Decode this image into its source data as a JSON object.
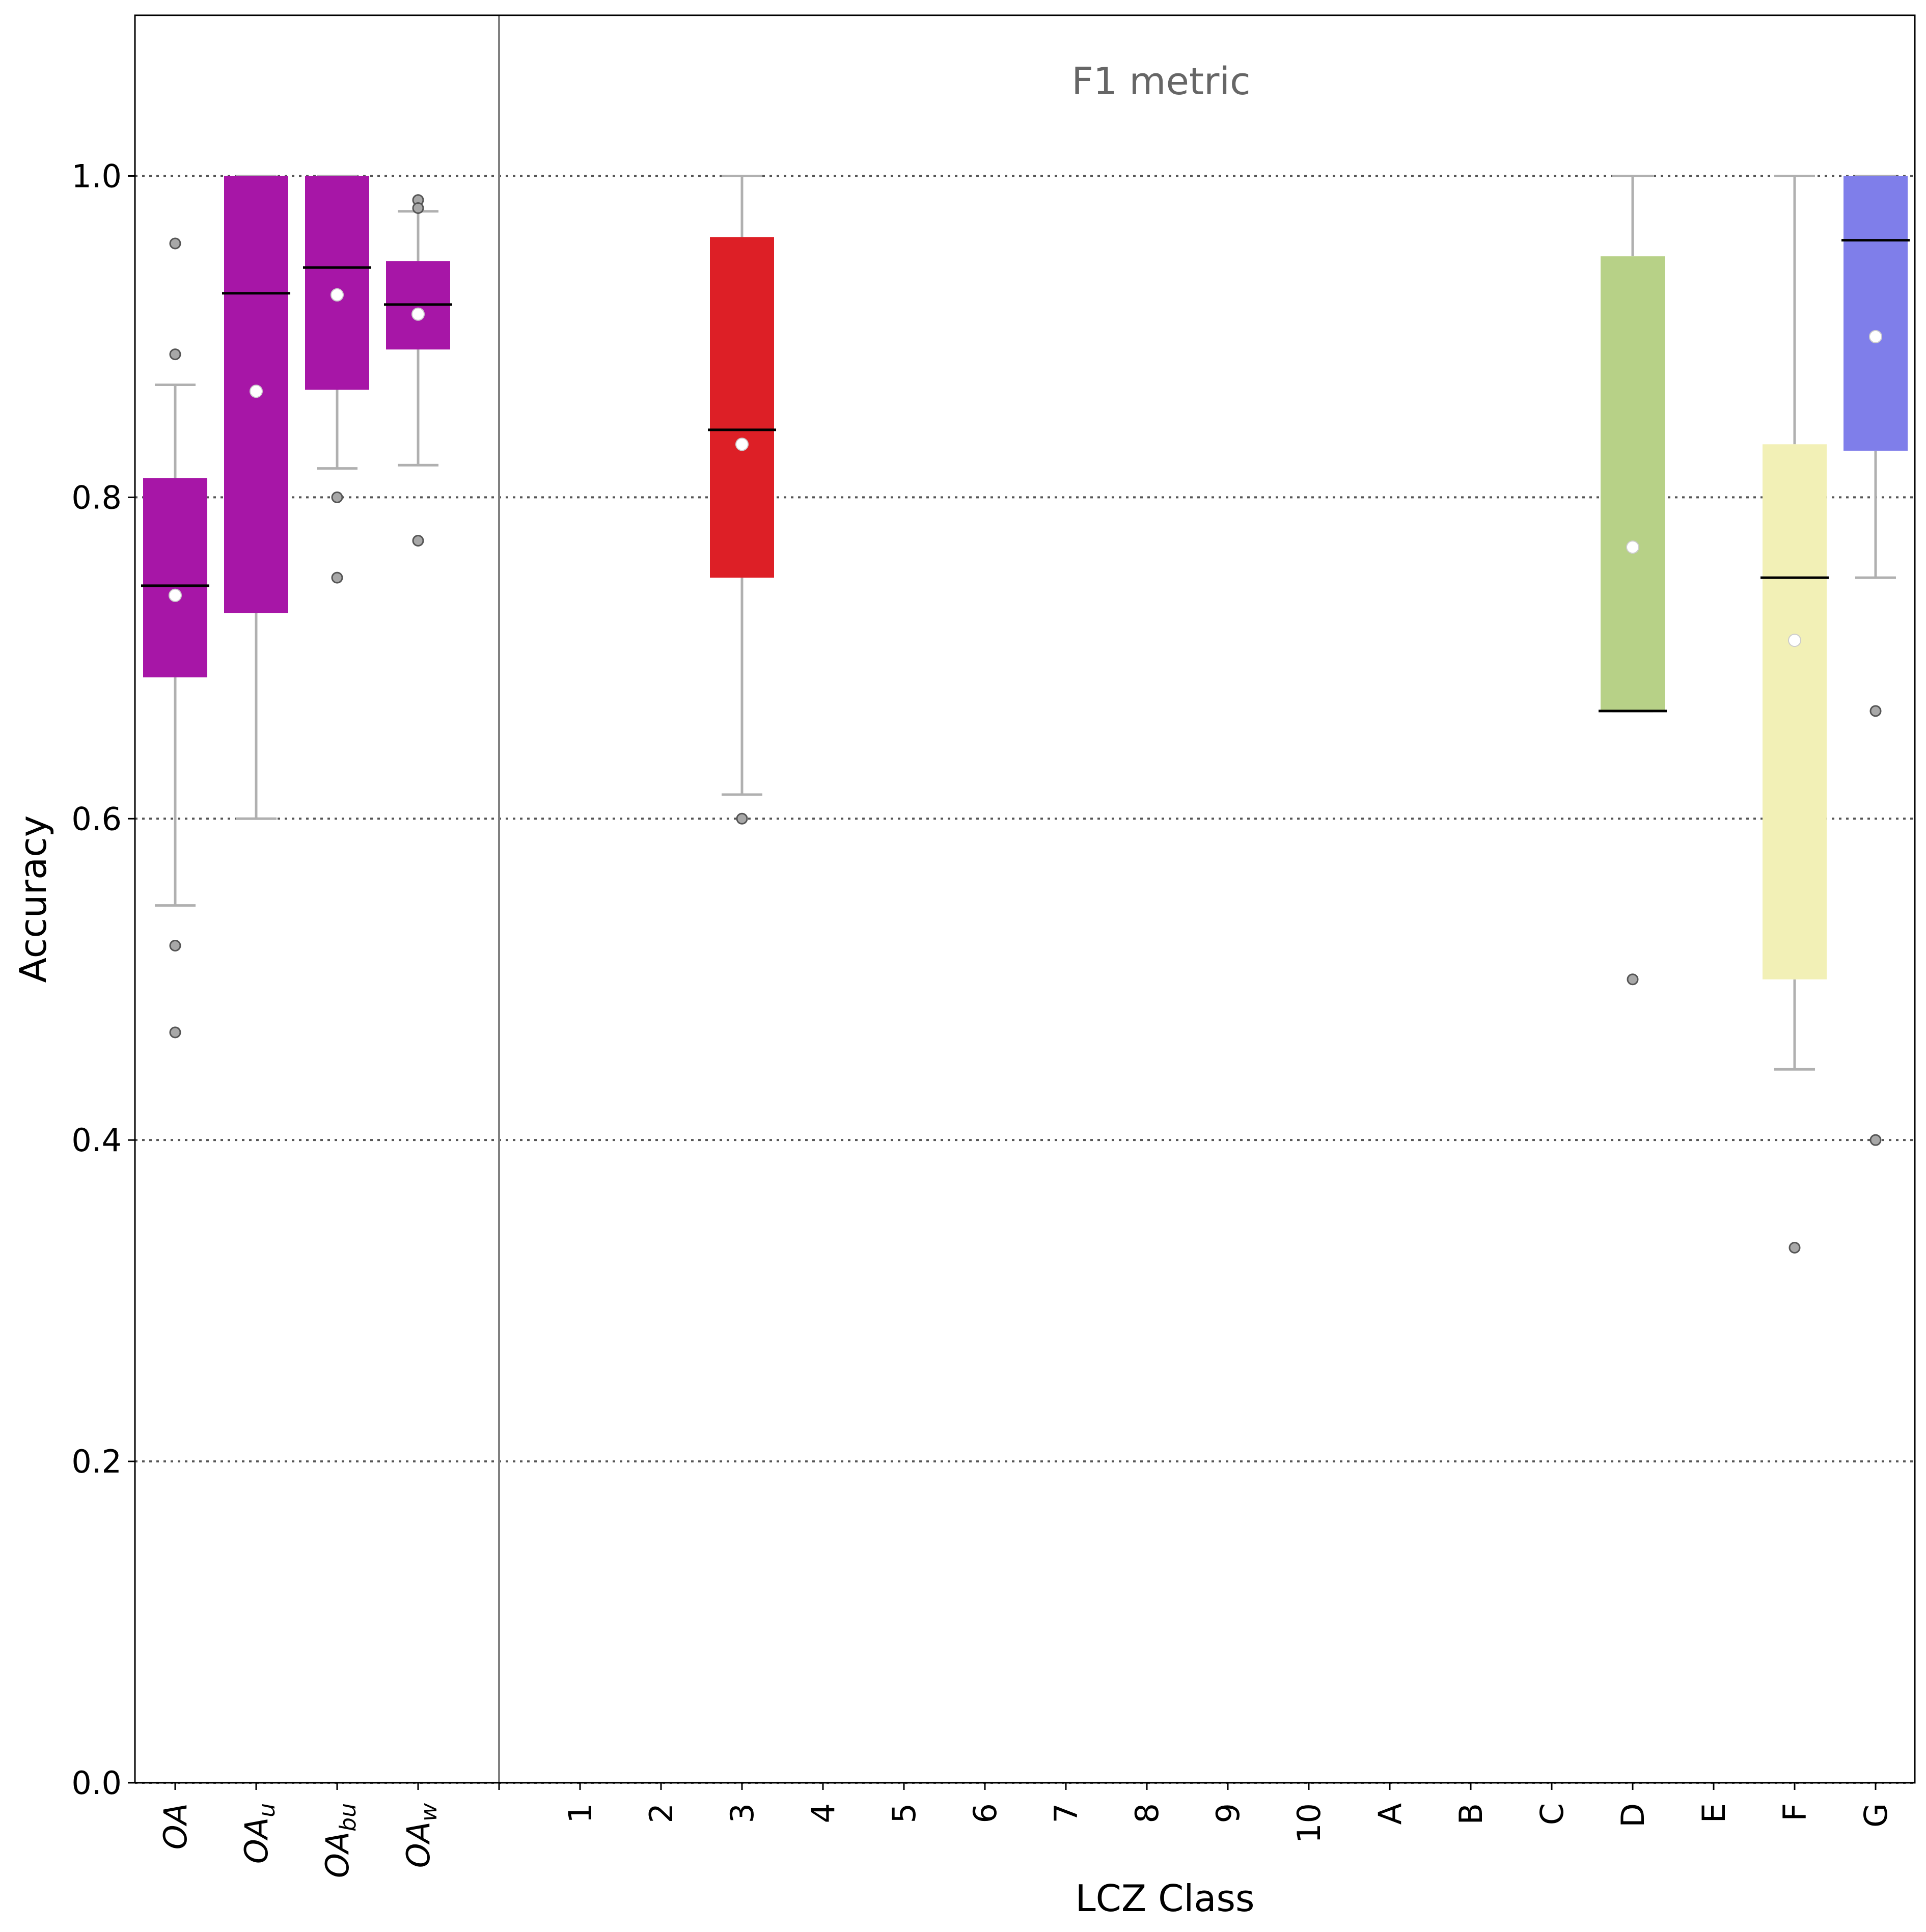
{
  "chart_data": {
    "type": "box",
    "annotation": "F1 metric",
    "xlabel": "LCZ Class",
    "ylabel": "Accuracy",
    "ylim": [
      0.0,
      1.1
    ],
    "yticks": [
      "0.0",
      "0.2",
      "0.4",
      "0.6",
      "0.8",
      "1.0"
    ],
    "grid": "horizontal dotted",
    "categories": [
      {
        "label": "OA",
        "sub": "",
        "italic": true
      },
      {
        "label": "OA",
        "sub": "u",
        "italic": true
      },
      {
        "label": "OA",
        "sub": "bu",
        "italic": true
      },
      {
        "label": "OA",
        "sub": "w",
        "italic": true
      },
      {
        "label": "",
        "sub": "",
        "italic": false
      },
      {
        "label": "1",
        "sub": "",
        "italic": false
      },
      {
        "label": "2",
        "sub": "",
        "italic": false
      },
      {
        "label": "3",
        "sub": "",
        "italic": false
      },
      {
        "label": "4",
        "sub": "",
        "italic": false
      },
      {
        "label": "5",
        "sub": "",
        "italic": false
      },
      {
        "label": "6",
        "sub": "",
        "italic": false
      },
      {
        "label": "7",
        "sub": "",
        "italic": false
      },
      {
        "label": "8",
        "sub": "",
        "italic": false
      },
      {
        "label": "9",
        "sub": "",
        "italic": false
      },
      {
        "label": "10",
        "sub": "",
        "italic": false
      },
      {
        "label": "A",
        "sub": "",
        "italic": false
      },
      {
        "label": "B",
        "sub": "",
        "italic": false
      },
      {
        "label": "C",
        "sub": "",
        "italic": false
      },
      {
        "label": "D",
        "sub": "",
        "italic": false
      },
      {
        "label": "E",
        "sub": "",
        "italic": false
      },
      {
        "label": "F",
        "sub": "",
        "italic": false
      },
      {
        "label": "G",
        "sub": "",
        "italic": false
      }
    ],
    "boxes": [
      {
        "name": "OA",
        "color": "#a716a7",
        "q1": 0.688,
        "median": 0.745,
        "q3": 0.812,
        "mean": 0.739,
        "whisker_low": 0.546,
        "whisker_high": 0.87,
        "outliers": [
          0.958,
          0.889,
          0.521,
          0.467
        ]
      },
      {
        "name": "OAu",
        "color": "#a716a7",
        "q1": 0.728,
        "median": 0.927,
        "q3": 1.0,
        "mean": 0.866,
        "whisker_low": 0.6,
        "whisker_high": 1.0,
        "outliers": []
      },
      {
        "name": "OAbu",
        "color": "#a716a7",
        "q1": 0.867,
        "median": 0.943,
        "q3": 1.0,
        "mean": 0.926,
        "whisker_low": 0.818,
        "whisker_high": 1.0,
        "outliers": [
          0.8,
          0.75
        ]
      },
      {
        "name": "OAw",
        "color": "#a716a7",
        "q1": 0.892,
        "median": 0.92,
        "q3": 0.947,
        "mean": 0.914,
        "whisker_low": 0.82,
        "whisker_high": 0.978,
        "outliers": [
          0.985,
          0.98,
          0.773
        ]
      },
      {
        "name": "3",
        "color": "#dd1f26",
        "q1": 0.75,
        "median": 0.842,
        "q3": 0.962,
        "mean": 0.833,
        "whisker_low": 0.615,
        "whisker_high": 1.0,
        "outliers": [
          0.6
        ]
      },
      {
        "name": "D",
        "color": "#b7d187",
        "q1": 0.667,
        "median": 0.667,
        "q3": 0.95,
        "mean": 0.769,
        "whisker_low": 0.667,
        "whisker_high": 1.0,
        "outliers": [
          0.5
        ]
      },
      {
        "name": "F",
        "color": "#f2f0b6",
        "q1": 0.5,
        "median": 0.75,
        "q3": 0.833,
        "mean": 0.711,
        "whisker_low": 0.444,
        "whisker_high": 1.0,
        "outliers": [
          0.333
        ]
      },
      {
        "name": "G",
        "color": "#7f7eea",
        "q1": 0.829,
        "median": 0.96,
        "q3": 1.0,
        "mean": 0.9,
        "whisker_low": 0.75,
        "whisker_high": 1.0,
        "outliers": [
          0.667,
          0.4
        ]
      }
    ]
  }
}
